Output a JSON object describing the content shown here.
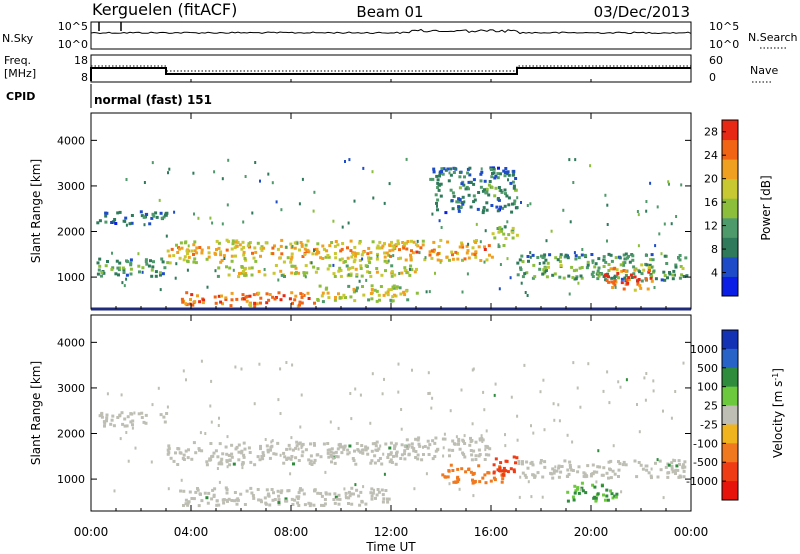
{
  "header": {
    "station": "Kerguelen (fitACF)",
    "beam": "Beam 01",
    "date": "03/Dec/2013"
  },
  "nsky_panel": {
    "left_label": "N.Sky",
    "left_ticks": [
      "10^5",
      "10^0"
    ],
    "right_label": "N.Search",
    "right_ticks": [
      "10^5",
      "10^0"
    ]
  },
  "freq_panel": {
    "left_label_line1": "Freq.",
    "left_label_line2": "[MHz]",
    "left_ticks": [
      "18",
      "8"
    ],
    "right_label": "Nave",
    "right_ticks": [
      "60",
      "0"
    ]
  },
  "cpid": {
    "label": "CPID",
    "value": "normal (fast) 151"
  },
  "colors": {
    "power_scale": [
      "#0a1ee6",
      "#1e4cc8",
      "#2f7a5a",
      "#4f9a6a",
      "#8cbe3c",
      "#c8c832",
      "#f0a020",
      "#f06414",
      "#e62814"
    ],
    "velocity_scale": [
      "#1432b4",
      "#2864c8",
      "#2f8c3c",
      "#6cc83c",
      "#bebeb4",
      "#f0b41e",
      "#f0781e",
      "#f03c14",
      "#e6140a"
    ]
  },
  "chart_data": [
    {
      "type": "heatmap",
      "panel": "power",
      "ylabel": "Slant Range [km]",
      "yticks": [
        "1000",
        "2000",
        "3000",
        "4000"
      ],
      "ylim": [
        300,
        4600
      ],
      "colorbar": {
        "label": "Power [dB]",
        "ticks": [
          "4",
          "8",
          "12",
          "16",
          "20",
          "24",
          "28"
        ],
        "range": [
          0,
          30
        ]
      },
      "echo_bands": [
        {
          "t0": 0.2,
          "t1": 3.0,
          "r0": 2150,
          "r1": 2450,
          "value": 10
        },
        {
          "t0": 0.2,
          "t1": 3.0,
          "r0": 1000,
          "r1": 1400,
          "value": 14
        },
        {
          "t0": 3.0,
          "t1": 12.5,
          "r0": 1300,
          "r1": 1800,
          "value": 22
        },
        {
          "t0": 12.0,
          "t1": 16.0,
          "r0": 1350,
          "r1": 1800,
          "value": 24
        },
        {
          "t0": 16.0,
          "t1": 17.0,
          "r0": 1650,
          "r1": 2100,
          "value": 18
        },
        {
          "t0": 5.0,
          "t1": 13.0,
          "r0": 1000,
          "r1": 1250,
          "value": 20
        },
        {
          "t0": 3.5,
          "t1": 9.0,
          "r0": 350,
          "r1": 650,
          "value": 27
        },
        {
          "t0": 9.0,
          "t1": 13.0,
          "r0": 450,
          "r1": 800,
          "value": 19
        },
        {
          "t0": 13.5,
          "t1": 17.0,
          "r0": 2400,
          "r1": 3400,
          "value": 11
        },
        {
          "t0": 17.0,
          "t1": 23.8,
          "r0": 900,
          "r1": 1500,
          "value": 14
        },
        {
          "t0": 20.5,
          "t1": 22.5,
          "r0": 700,
          "r1": 1200,
          "value": 27
        }
      ]
    },
    {
      "type": "heatmap",
      "panel": "velocity",
      "ylabel": "Slant Range [km]",
      "xlabel": "Time UT",
      "yticks": [
        "1000",
        "2000",
        "3000",
        "4000"
      ],
      "ylim": [
        300,
        4600
      ],
      "xticks": [
        "00:00",
        "04:00",
        "08:00",
        "12:00",
        "16:00",
        "20:00",
        "00:00"
      ],
      "xlim": [
        0,
        24
      ],
      "colorbar": {
        "label": "Velocity [m s^-1]",
        "ticks": [
          "1000",
          "500",
          "100",
          "25",
          "-25",
          "-100",
          "-500",
          "-1000"
        ]
      },
      "echo_bands": [
        {
          "t0": 0.2,
          "t1": 3.0,
          "r0": 2150,
          "r1": 2450,
          "value": 0
        },
        {
          "t0": 3.0,
          "t1": 12.5,
          "r0": 1300,
          "r1": 1800,
          "value": 0
        },
        {
          "t0": 12.5,
          "t1": 16.0,
          "r0": 1400,
          "r1": 1900,
          "value": 0
        },
        {
          "t0": 14.0,
          "t1": 16.5,
          "r0": 900,
          "r1": 1300,
          "value": -400
        },
        {
          "t0": 16.0,
          "t1": 17.0,
          "r0": 1000,
          "r1": 1500,
          "value": -700
        },
        {
          "t0": 17.0,
          "t1": 23.8,
          "r0": 1000,
          "r1": 1400,
          "value": 0
        },
        {
          "t0": 3.5,
          "t1": 12.0,
          "r0": 400,
          "r1": 800,
          "value": 0
        },
        {
          "t0": 19.0,
          "t1": 21.0,
          "r0": 500,
          "r1": 900,
          "value": 60
        }
      ]
    }
  ]
}
